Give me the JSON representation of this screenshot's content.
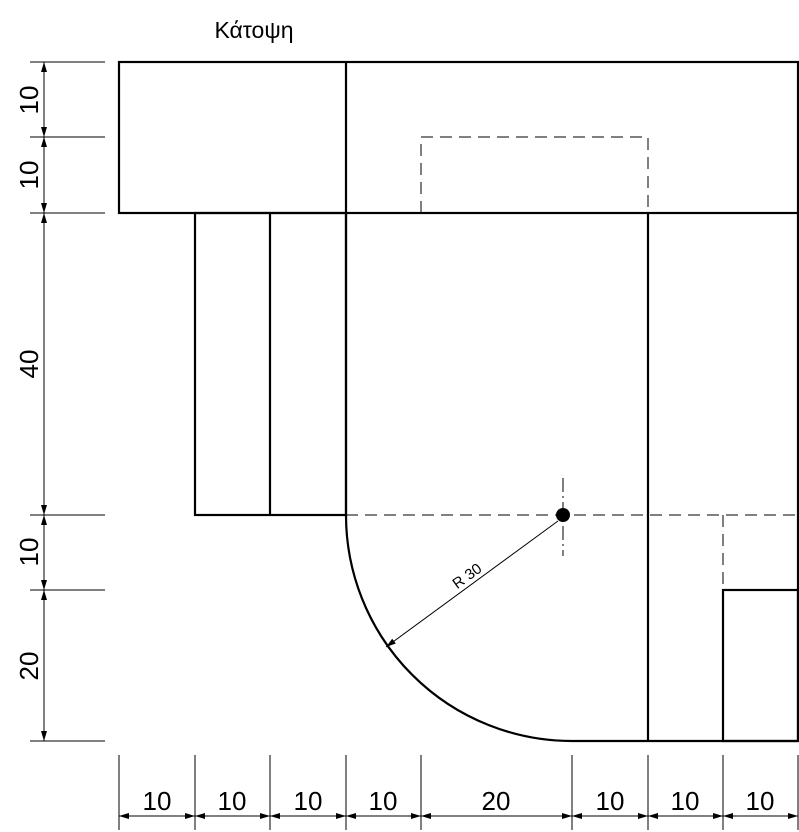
{
  "title": "Κάτοψη",
  "dimensions": {
    "left": [
      "10",
      "10",
      "40",
      "10",
      "20"
    ],
    "bottom": [
      "10",
      "10",
      "10",
      "10",
      "20",
      "10",
      "10",
      "10"
    ]
  },
  "radius_label": "R 30"
}
